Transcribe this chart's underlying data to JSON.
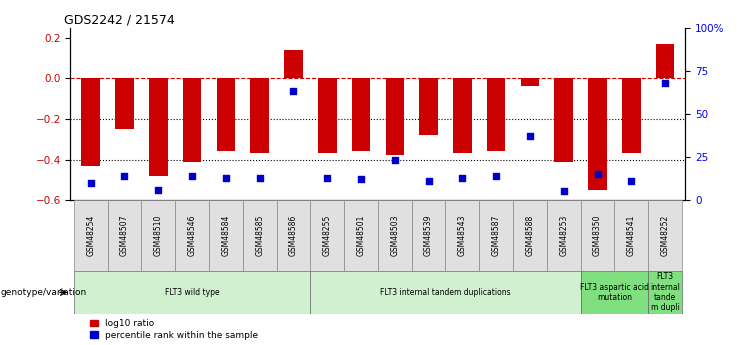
{
  "title": "GDS2242 / 21574",
  "samples": [
    "GSM48254",
    "GSM48507",
    "GSM48510",
    "GSM48546",
    "GSM48584",
    "GSM48585",
    "GSM48586",
    "GSM48255",
    "GSM48501",
    "GSM48503",
    "GSM48539",
    "GSM48543",
    "GSM48587",
    "GSM48588",
    "GSM48253",
    "GSM48350",
    "GSM48541",
    "GSM48252"
  ],
  "log10_ratio": [
    -0.43,
    -0.25,
    -0.48,
    -0.41,
    -0.36,
    -0.37,
    0.14,
    -0.37,
    -0.36,
    -0.38,
    -0.28,
    -0.37,
    -0.36,
    -0.04,
    -0.41,
    -0.55,
    -0.37,
    0.17
  ],
  "percentile_rank": [
    10,
    14,
    6,
    14,
    13,
    13,
    63,
    13,
    12,
    23,
    11,
    13,
    14,
    37,
    5,
    15,
    11,
    68
  ],
  "groups": [
    {
      "label": "FLT3 wild type",
      "start": 0,
      "end": 7,
      "color": "#d0f0d0"
    },
    {
      "label": "FLT3 internal tandem duplications",
      "start": 7,
      "end": 15,
      "color": "#d0f0d0"
    },
    {
      "label": "FLT3 aspartic acid\nmutation",
      "start": 15,
      "end": 17,
      "color": "#80e080"
    },
    {
      "label": "FLT3\ninternal\ntande\nm dupli",
      "start": 17,
      "end": 18,
      "color": "#80e080"
    }
  ],
  "bar_color": "#cc0000",
  "dot_color": "#0000cc",
  "ylim_left": [
    -0.6,
    0.25
  ],
  "ylim_right": [
    0,
    100
  ],
  "yticks_left": [
    -0.6,
    -0.4,
    -0.2,
    0.0,
    0.2
  ],
  "yticks_right": [
    0,
    25,
    50,
    75,
    100
  ],
  "ytick_labels_right": [
    "0",
    "25",
    "50",
    "75",
    "100%"
  ],
  "legend_items": [
    {
      "label": "log10 ratio",
      "color": "#cc0000"
    },
    {
      "label": "percentile rank within the sample",
      "color": "#0000cc"
    }
  ],
  "group_label": "genotype/variation"
}
